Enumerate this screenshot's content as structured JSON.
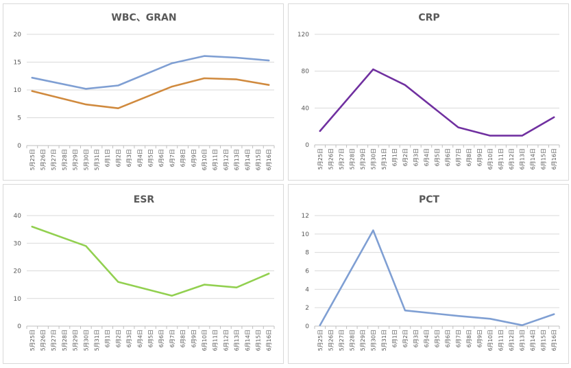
{
  "chart_data": [
    {
      "type": "line",
      "title": "WBC、GRAN",
      "categories": [
        "5月25日",
        "5月26日",
        "5月27日",
        "5月28日",
        "5月29日",
        "5月30日",
        "5月31日",
        "6月1日",
        "6月2日",
        "6月3日",
        "6月4日",
        "6月5日",
        "6月6日",
        "6月7日",
        "6月8日",
        "6月9日",
        "6月10日",
        "6月11日",
        "6月12日",
        "6月13日",
        "6月14日",
        "6月15日",
        "6月16日"
      ],
      "ylim": [
        0,
        20
      ],
      "yticks": [
        0,
        5,
        10,
        15,
        20
      ],
      "grid": true,
      "series": [
        {
          "color": "#7F9FD3",
          "points": [
            [
              0,
              12.2
            ],
            [
              5,
              10.2
            ],
            [
              8,
              10.8
            ],
            [
              13,
              14.8
            ],
            [
              16,
              16.1
            ],
            [
              19,
              15.8
            ],
            [
              22,
              15.3
            ]
          ]
        },
        {
          "color": "#D08A3E",
          "points": [
            [
              0,
              9.8
            ],
            [
              5,
              7.4
            ],
            [
              8,
              6.7
            ],
            [
              13,
              10.6
            ],
            [
              16,
              12.1
            ],
            [
              19,
              11.9
            ],
            [
              22,
              10.9
            ]
          ]
        }
      ]
    },
    {
      "type": "line",
      "title": "CRP",
      "categories": [
        "5月25日",
        "5月26日",
        "5月27日",
        "5月28日",
        "5月29日",
        "5月30日",
        "5月31日",
        "6月1日",
        "6月2日",
        "6月3日",
        "6月4日",
        "6月5日",
        "6月6日",
        "6月7日",
        "6月8日",
        "6月9日",
        "6月10日",
        "6月11日",
        "6月12日",
        "6月13日",
        "6月14日",
        "6月15日",
        "6月16日"
      ],
      "ylim": [
        0,
        120
      ],
      "yticks": [
        0,
        40,
        80,
        120
      ],
      "grid": true,
      "series": [
        {
          "color": "#7030A0",
          "points": [
            [
              0,
              15
            ],
            [
              5,
              82
            ],
            [
              8,
              65
            ],
            [
              13,
              19
            ],
            [
              16,
              10
            ],
            [
              19,
              10
            ],
            [
              22,
              30
            ]
          ]
        }
      ]
    },
    {
      "type": "line",
      "title": "ESR",
      "categories": [
        "5月25日",
        "5月26日",
        "5月27日",
        "5月28日",
        "5月29日",
        "5月30日",
        "5月31日",
        "6月1日",
        "6月2日",
        "6月3日",
        "6月4日",
        "6月5日",
        "6月6日",
        "6月7日",
        "6月8日",
        "6月9日",
        "6月10日",
        "6月11日",
        "6月12日",
        "6月13日",
        "6月14日",
        "6月15日",
        "6月16日"
      ],
      "ylim": [
        0,
        40
      ],
      "yticks": [
        0,
        10,
        20,
        30,
        40
      ],
      "grid": true,
      "series": [
        {
          "color": "#92D050",
          "points": [
            [
              0,
              36
            ],
            [
              5,
              29
            ],
            [
              8,
              16
            ],
            [
              13,
              11
            ],
            [
              16,
              15
            ],
            [
              19,
              14
            ],
            [
              22,
              19
            ]
          ]
        }
      ]
    },
    {
      "type": "line",
      "title": "PCT",
      "categories": [
        "5月25日",
        "5月26日",
        "5月27日",
        "5月28日",
        "5月29日",
        "5月30日",
        "5月31日",
        "6月1日",
        "6月2日",
        "6月3日",
        "6月4日",
        "6月5日",
        "6月6日",
        "6月7日",
        "6月8日",
        "6月9日",
        "6月10日",
        "6月11日",
        "6月12日",
        "6月13日",
        "6月14日",
        "6月15日",
        "6月16日"
      ],
      "ylim": [
        0,
        12
      ],
      "yticks": [
        0,
        2,
        4,
        6,
        8,
        10,
        12
      ],
      "grid": true,
      "series": [
        {
          "color": "#7F9FD3",
          "points": [
            [
              0,
              0.1
            ],
            [
              5,
              10.4
            ],
            [
              8,
              1.7
            ],
            [
              13,
              1.1
            ],
            [
              16,
              0.8
            ],
            [
              19,
              0.1
            ],
            [
              22,
              1.3
            ]
          ]
        }
      ]
    }
  ]
}
